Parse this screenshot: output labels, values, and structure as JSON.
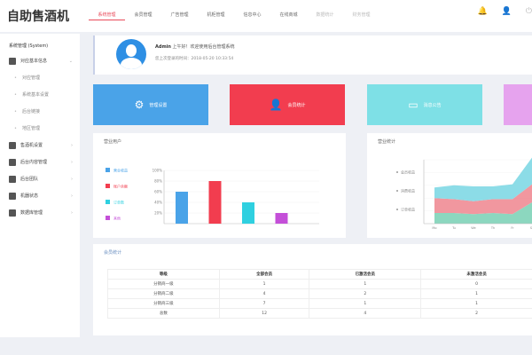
{
  "header": {
    "logo": "自助售酒机",
    "nav": [
      {
        "label": "系统管理",
        "active": true
      },
      {
        "label": "会员管理"
      },
      {
        "label": "广告管理"
      },
      {
        "label": "机柜管理"
      },
      {
        "label": "信息中心"
      },
      {
        "label": "在线商城"
      },
      {
        "label": "数据统计",
        "dim": true
      },
      {
        "label": "财务管理",
        "dim": true
      }
    ],
    "icons": [
      "bell-icon",
      "user-icon",
      "power-icon"
    ]
  },
  "sidebar": {
    "title": "系统管理 (System)",
    "items": [
      {
        "label": "对应基本信息",
        "icon": "monitor-icon",
        "expanded": true,
        "children": [
          "对应管理",
          "系统基本设置",
          "后台链接",
          "地区管理"
        ]
      },
      {
        "label": "售酒机设置",
        "icon": "org-icon"
      },
      {
        "label": "后台内容管理",
        "icon": "list-icon"
      },
      {
        "label": "后台团队",
        "icon": "team-icon"
      },
      {
        "label": "机器状态",
        "icon": "device-icon"
      },
      {
        "label": "数据库管理",
        "icon": "database-icon"
      }
    ]
  },
  "welcome": {
    "name": "Admin",
    "greeting": "上午好！欢迎使用后台管理系统",
    "last_login": "您上次登录的时间：2018-05-20 10:33:54"
  },
  "tiles": [
    {
      "label": "管理设置",
      "icon": "gear-icon",
      "color": "#4aa3e8"
    },
    {
      "label": "会员统计",
      "icon": "user-icon",
      "color": "#f23d4f"
    },
    {
      "label": "消息公告",
      "icon": "message-icon",
      "color": "#7ee0e6"
    },
    {
      "label": "",
      "icon": "",
      "color": "#e6a3ee"
    }
  ],
  "chart_data": [
    {
      "type": "bar",
      "title": "营业用户",
      "categories": [
        "营业收益",
        "账户余额",
        "订单数",
        "其他"
      ],
      "values": [
        60,
        80,
        40,
        20
      ],
      "colors": [
        "#4aa3e8",
        "#f23d4f",
        "#2fd0e0",
        "#c44fd8"
      ],
      "yticks": [
        "20%",
        "40%",
        "60%",
        "80%",
        "100%"
      ],
      "ylim": [
        0,
        100
      ],
      "legend": "left"
    },
    {
      "type": "area",
      "title": "营业统计",
      "stacked": true,
      "x": [
        "Mo",
        "Tu",
        "We",
        "Th",
        "Fr",
        "Sa"
      ],
      "series": [
        {
          "name": "会员收益",
          "values": [
            10,
            10,
            9,
            10,
            9,
            20
          ],
          "color": "#7fd3b8"
        },
        {
          "name": "消费收益",
          "values": [
            14,
            13,
            12,
            13,
            14,
            17
          ],
          "color": "#f08c95"
        },
        {
          "name": "订单收益",
          "values": [
            10,
            13,
            14,
            12,
            14,
            25
          ],
          "color": "#7fd8e4"
        }
      ],
      "legend": "left"
    }
  ],
  "member_table": {
    "title": "会员统计",
    "headers": [
      "等级",
      "全部会员",
      "已激活会员",
      "未激活会员"
    ],
    "rows": [
      [
        "分销商一级",
        "1",
        "1",
        "0"
      ],
      [
        "分销商二级",
        "4",
        "2",
        "1"
      ],
      [
        "分销商三级",
        "7",
        "1",
        "1"
      ],
      [
        "总数",
        "12",
        "4",
        "2"
      ]
    ]
  }
}
